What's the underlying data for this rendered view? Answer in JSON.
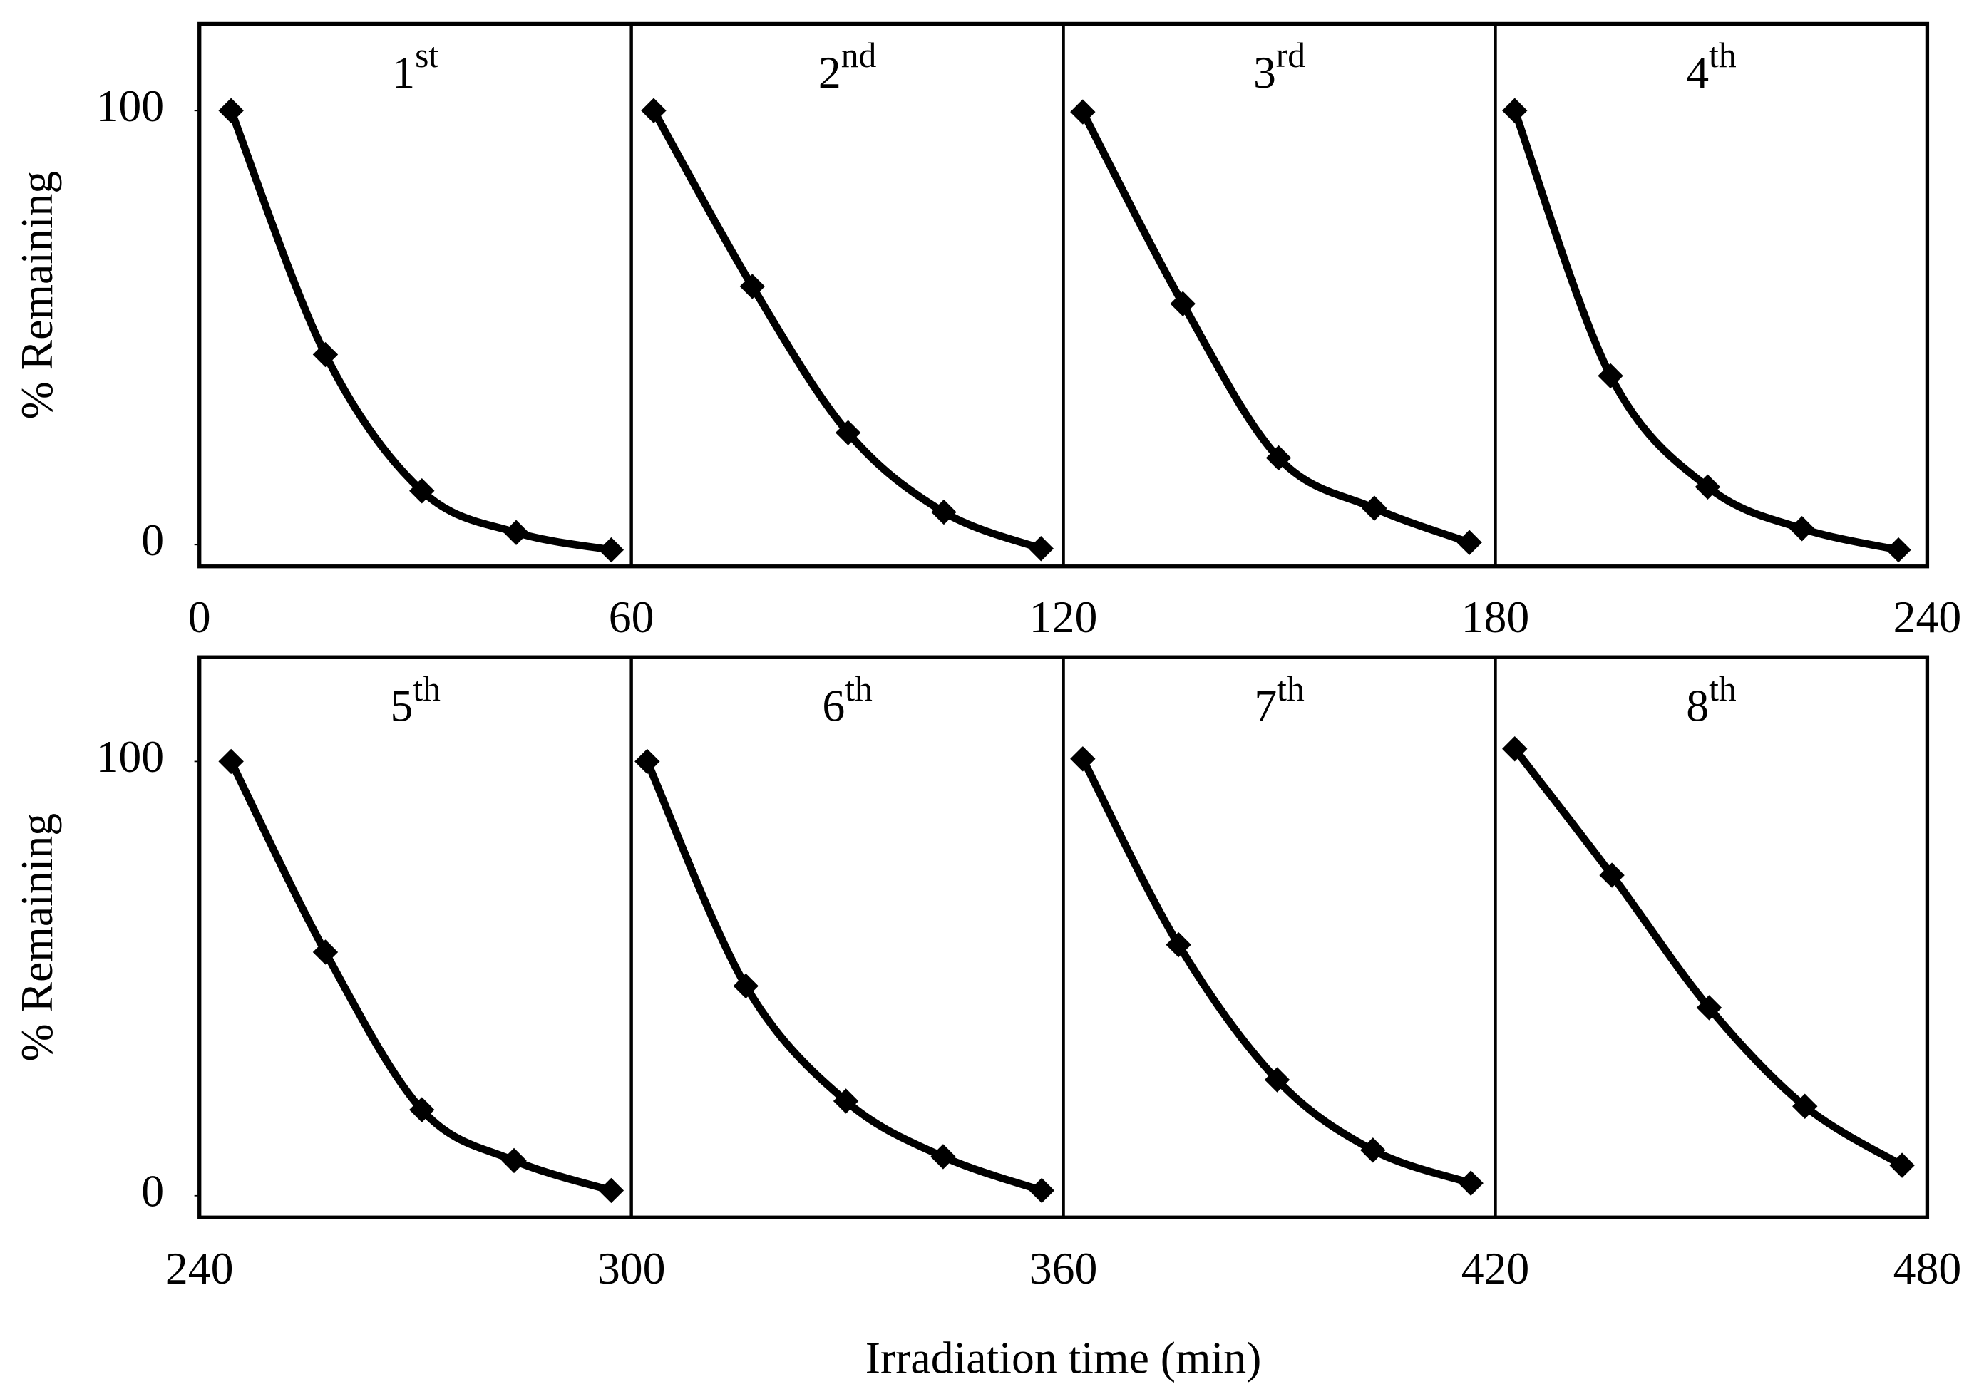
{
  "chart_data": [
    {
      "type": "line",
      "ylabel": "% Remaining",
      "xlim": [
        0,
        240
      ],
      "ylim": [
        -5,
        120
      ],
      "xticks": [
        0,
        60,
        120,
        180,
        240
      ],
      "yticks": [
        0,
        100
      ],
      "color": "#000000",
      "series": [
        {
          "name": "1st",
          "x": [
            4.4,
            17.5,
            30.9,
            44,
            57.2
          ],
          "values": [
            100,
            43.8,
            12.4,
            2.8,
            -1.2
          ]
        },
        {
          "name": "2nd",
          "x": [
            63.1,
            76.8,
            90.1,
            103.4,
            116.9
          ],
          "values": [
            100,
            59.5,
            25.8,
            7.5,
            -0.9
          ]
        },
        {
          "name": "3rd",
          "x": [
            122.7,
            136.6,
            149.9,
            163.2,
            176.4
          ],
          "values": [
            99.7,
            55.5,
            20,
            8.4,
            0.5
          ]
        },
        {
          "name": "4th",
          "x": [
            182.7,
            196,
            209.5,
            222.6,
            236
          ],
          "values": [
            100,
            38.9,
            13.3,
            3.7,
            -1.2
          ]
        }
      ]
    },
    {
      "type": "line",
      "ylabel": "% Remaining",
      "xlabel": "Irradiation time (min)",
      "xlim": [
        240,
        480
      ],
      "ylim": [
        -5,
        124
      ],
      "xticks": [
        240,
        300,
        360,
        420,
        480
      ],
      "yticks": [
        0,
        100
      ],
      "color": "#000000",
      "series": [
        {
          "name": "5th",
          "x": [
            244.4,
            257.5,
            270.9,
            283.7,
            297.2
          ],
          "values": [
            100,
            56.1,
            19.8,
            8.1,
            1.2
          ]
        },
        {
          "name": "6th",
          "x": [
            302.2,
            315.9,
            329.8,
            343.3,
            357
          ],
          "values": [
            100,
            48.3,
            21.8,
            9,
            1.2
          ]
        },
        {
          "name": "7th",
          "x": [
            362.7,
            376,
            389.7,
            403,
            416.6
          ],
          "values": [
            100.6,
            57.8,
            26.7,
            10.5,
            2.9
          ]
        },
        {
          "name": "8th",
          "x": [
            422.7,
            436.2,
            449.7,
            463,
            476.5
          ],
          "values": [
            102.9,
            73.8,
            43.3,
            20.6,
            7
          ]
        }
      ]
    }
  ]
}
